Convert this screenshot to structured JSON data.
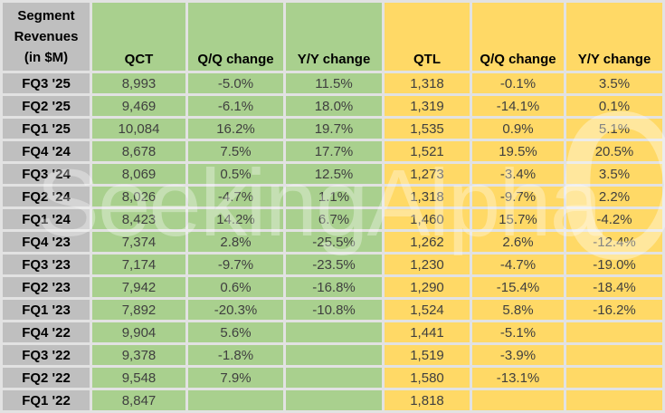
{
  "title": "Segment Revenues (in $M)",
  "watermark": {
    "text": "SeekingAlpha",
    "alpha": "α"
  },
  "colors": {
    "qct_group": "#A9D08E",
    "qtl_group": "#FFD966",
    "label_column": "#BFBFBF",
    "gridline": "#E2E2E2",
    "header_text": "#000000",
    "value_text": "#3F3F3F"
  },
  "table": {
    "corner_lines": [
      "Segment",
      "Revenues",
      "(in $M)"
    ],
    "columns": [
      "QCT",
      "Q/Q change",
      "Y/Y change",
      "QTL",
      "Q/Q change",
      "Y/Y change"
    ],
    "rows": [
      [
        "FQ3 '25",
        "8,993",
        "-5.0%",
        "11.5%",
        "1,318",
        "-0.1%",
        "3.5%"
      ],
      [
        "FQ2 '25",
        "9,469",
        "-6.1%",
        "18.0%",
        "1,319",
        "-14.1%",
        "0.1%"
      ],
      [
        "FQ1 '25",
        "10,084",
        "16.2%",
        "19.7%",
        "1,535",
        "0.9%",
        "5.1%"
      ],
      [
        "FQ4 '24",
        "8,678",
        "7.5%",
        "17.7%",
        "1,521",
        "19.5%",
        "20.5%"
      ],
      [
        "FQ3 '24",
        "8,069",
        "0.5%",
        "12.5%",
        "1,273",
        "-3.4%",
        "3.5%"
      ],
      [
        "FQ2 '24",
        "8,026",
        "-4.7%",
        "1.1%",
        "1,318",
        "-9.7%",
        "2.2%"
      ],
      [
        "FQ1 '24",
        "8,423",
        "14.2%",
        "6.7%",
        "1,460",
        "15.7%",
        "-4.2%"
      ],
      [
        "FQ4 '23",
        "7,374",
        "2.8%",
        "-25.5%",
        "1,262",
        "2.6%",
        "-12.4%"
      ],
      [
        "FQ3 '23",
        "7,174",
        "-9.7%",
        "-23.5%",
        "1,230",
        "-4.7%",
        "-19.0%"
      ],
      [
        "FQ2 '23",
        "7,942",
        "0.6%",
        "-16.8%",
        "1,290",
        "-15.4%",
        "-18.4%"
      ],
      [
        "FQ1 '23",
        "7,892",
        "-20.3%",
        "-10.8%",
        "1,524",
        "5.8%",
        "-16.2%"
      ],
      [
        "FQ4 '22",
        "9,904",
        "5.6%",
        "",
        "1,441",
        "-5.1%",
        ""
      ],
      [
        "FQ3 '22",
        "9,378",
        "-1.8%",
        "",
        "1,519",
        "-3.9%",
        ""
      ],
      [
        "FQ2 '22",
        "9,548",
        "7.9%",
        "",
        "1,580",
        "-13.1%",
        ""
      ],
      [
        "FQ1 '22",
        "8,847",
        "",
        "",
        "1,818",
        "",
        ""
      ]
    ]
  },
  "chart_data": {
    "type": "table",
    "title": "Segment Revenues (in $M)",
    "categories": [
      "FQ3 '25",
      "FQ2 '25",
      "FQ1 '25",
      "FQ4 '24",
      "FQ3 '24",
      "FQ2 '24",
      "FQ1 '24",
      "FQ4 '23",
      "FQ3 '23",
      "FQ2 '23",
      "FQ1 '23",
      "FQ4 '22",
      "FQ3 '22",
      "FQ2 '22",
      "FQ1 '22"
    ],
    "series": [
      {
        "name": "QCT revenue ($M)",
        "values": [
          8993,
          9469,
          10084,
          8678,
          8069,
          8026,
          8423,
          7374,
          7174,
          7942,
          7892,
          9904,
          9378,
          9548,
          8847
        ]
      },
      {
        "name": "QCT Q/Q change (%)",
        "values": [
          -5.0,
          -6.1,
          16.2,
          7.5,
          0.5,
          -4.7,
          14.2,
          2.8,
          -9.7,
          0.6,
          -20.3,
          5.6,
          -1.8,
          7.9,
          null
        ]
      },
      {
        "name": "QCT Y/Y change (%)",
        "values": [
          11.5,
          18.0,
          19.7,
          17.7,
          12.5,
          1.1,
          6.7,
          -25.5,
          -23.5,
          -16.8,
          -10.8,
          null,
          null,
          null,
          null
        ]
      },
      {
        "name": "QTL revenue ($M)",
        "values": [
          1318,
          1319,
          1535,
          1521,
          1273,
          1318,
          1460,
          1262,
          1230,
          1290,
          1524,
          1441,
          1519,
          1580,
          1818
        ]
      },
      {
        "name": "QTL Q/Q change (%)",
        "values": [
          -0.1,
          -14.1,
          0.9,
          19.5,
          -3.4,
          -9.7,
          15.7,
          2.6,
          -4.7,
          -15.4,
          5.8,
          -5.1,
          -3.9,
          -13.1,
          null
        ]
      },
      {
        "name": "QTL Y/Y change (%)",
        "values": [
          3.5,
          0.1,
          5.1,
          20.5,
          3.5,
          2.2,
          -4.2,
          -12.4,
          -19.0,
          -18.4,
          -16.2,
          null,
          null,
          null,
          null
        ]
      }
    ]
  }
}
